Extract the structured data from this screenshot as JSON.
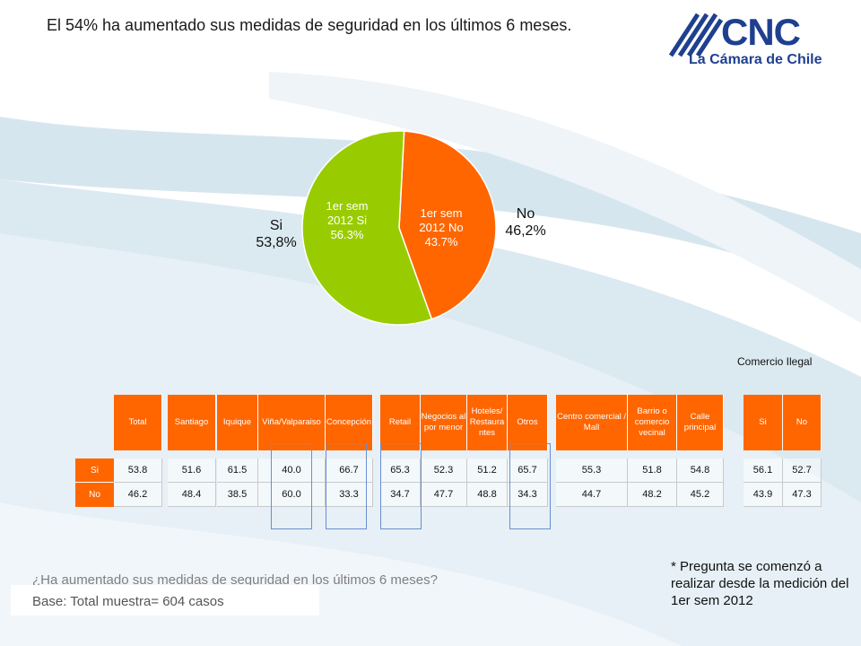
{
  "title": "El 54% ha aumentado sus medidas de seguridad en los últimos 6 meses.",
  "logo": {
    "name": "CNC",
    "subtitle": "La Cámara de Chile"
  },
  "colors": {
    "orange": "#ff6600",
    "green": "#99cc00",
    "logo_blue": "#1f3f8f",
    "highlight": "#6a8fd0"
  },
  "pie": {
    "outer_labels": {
      "si": "Si\n53,8%",
      "no": "No\n46,2%"
    },
    "slice_labels": {
      "si": "1er sem\n2012 Si\n56.3%",
      "no": "1er sem\n2012 No\n43.7%"
    }
  },
  "chart_data": [
    {
      "type": "pie",
      "categories": [
        "1er sem 2012 Si",
        "1er sem 2012 No"
      ],
      "values": [
        56.3,
        43.7
      ],
      "outer_labels": [
        "Si 53,8%",
        "No 46,2%"
      ],
      "colors": [
        "#99cc00",
        "#ff6600"
      ]
    },
    {
      "type": "table",
      "legend": "Comercio Ilegal",
      "groups": [
        {
          "columns": [
            "Total"
          ],
          "si": [
            53.8
          ],
          "no": [
            46.2
          ]
        },
        {
          "columns": [
            "Santiago",
            "Iquique",
            "Viña/Valparaiso",
            "Concepción"
          ],
          "si": [
            51.6,
            61.5,
            40.0,
            66.7
          ],
          "no": [
            48.4,
            38.5,
            60.0,
            33.3
          ]
        },
        {
          "columns": [
            "Retail",
            "Negocios al por menor",
            "Hoteles/ Restaurantes",
            "Otros"
          ],
          "si": [
            65.3,
            52.3,
            51.2,
            65.7
          ],
          "no": [
            34.7,
            47.7,
            48.8,
            34.3
          ]
        },
        {
          "columns": [
            "Centro comercial / Mall",
            "Barrio o comercio vecinal",
            "Calle principal"
          ],
          "si": [
            55.3,
            51.8,
            54.8
          ],
          "no": [
            44.7,
            48.2,
            45.2
          ]
        },
        {
          "columns": [
            "Si",
            "No"
          ],
          "si": [
            56.1,
            52.7
          ],
          "no": [
            43.9,
            47.3
          ]
        }
      ],
      "row_labels": [
        "Si",
        "No"
      ]
    }
  ],
  "table_view": {
    "headers": [
      "Total",
      "Santiago",
      "Iquique",
      "Viña/Valparaiso",
      "Concepción",
      "Retail",
      "Negocios al por menor",
      "Hoteles/ Restaura ntes",
      "Otros",
      "Centro comercial / Mall",
      "Barrio o comercio vecinal",
      "Calle principal",
      "Si",
      "No"
    ],
    "si": [
      "53.8",
      "51.6",
      "61.5",
      "40.0",
      "66.7",
      "65.3",
      "52.3",
      "51.2",
      "65.7",
      "55.3",
      "51.8",
      "54.8",
      "56.1",
      "52.7"
    ],
    "no": [
      "46.2",
      "48.4",
      "38.5",
      "60.0",
      "33.3",
      "34.7",
      "47.7",
      "48.8",
      "34.3",
      "44.7",
      "48.2",
      "45.2",
      "43.9",
      "47.3"
    ],
    "row_labels": [
      "Si",
      "No"
    ],
    "legend": "Comercio Ilegal"
  },
  "question": "¿Ha aumentado sus medidas de seguridad en los últimos 6 meses?",
  "base": "Base: Total muestra= 604 casos",
  "note": "* Pregunta se comenzó a realizar desde la medición del 1er sem 2012"
}
